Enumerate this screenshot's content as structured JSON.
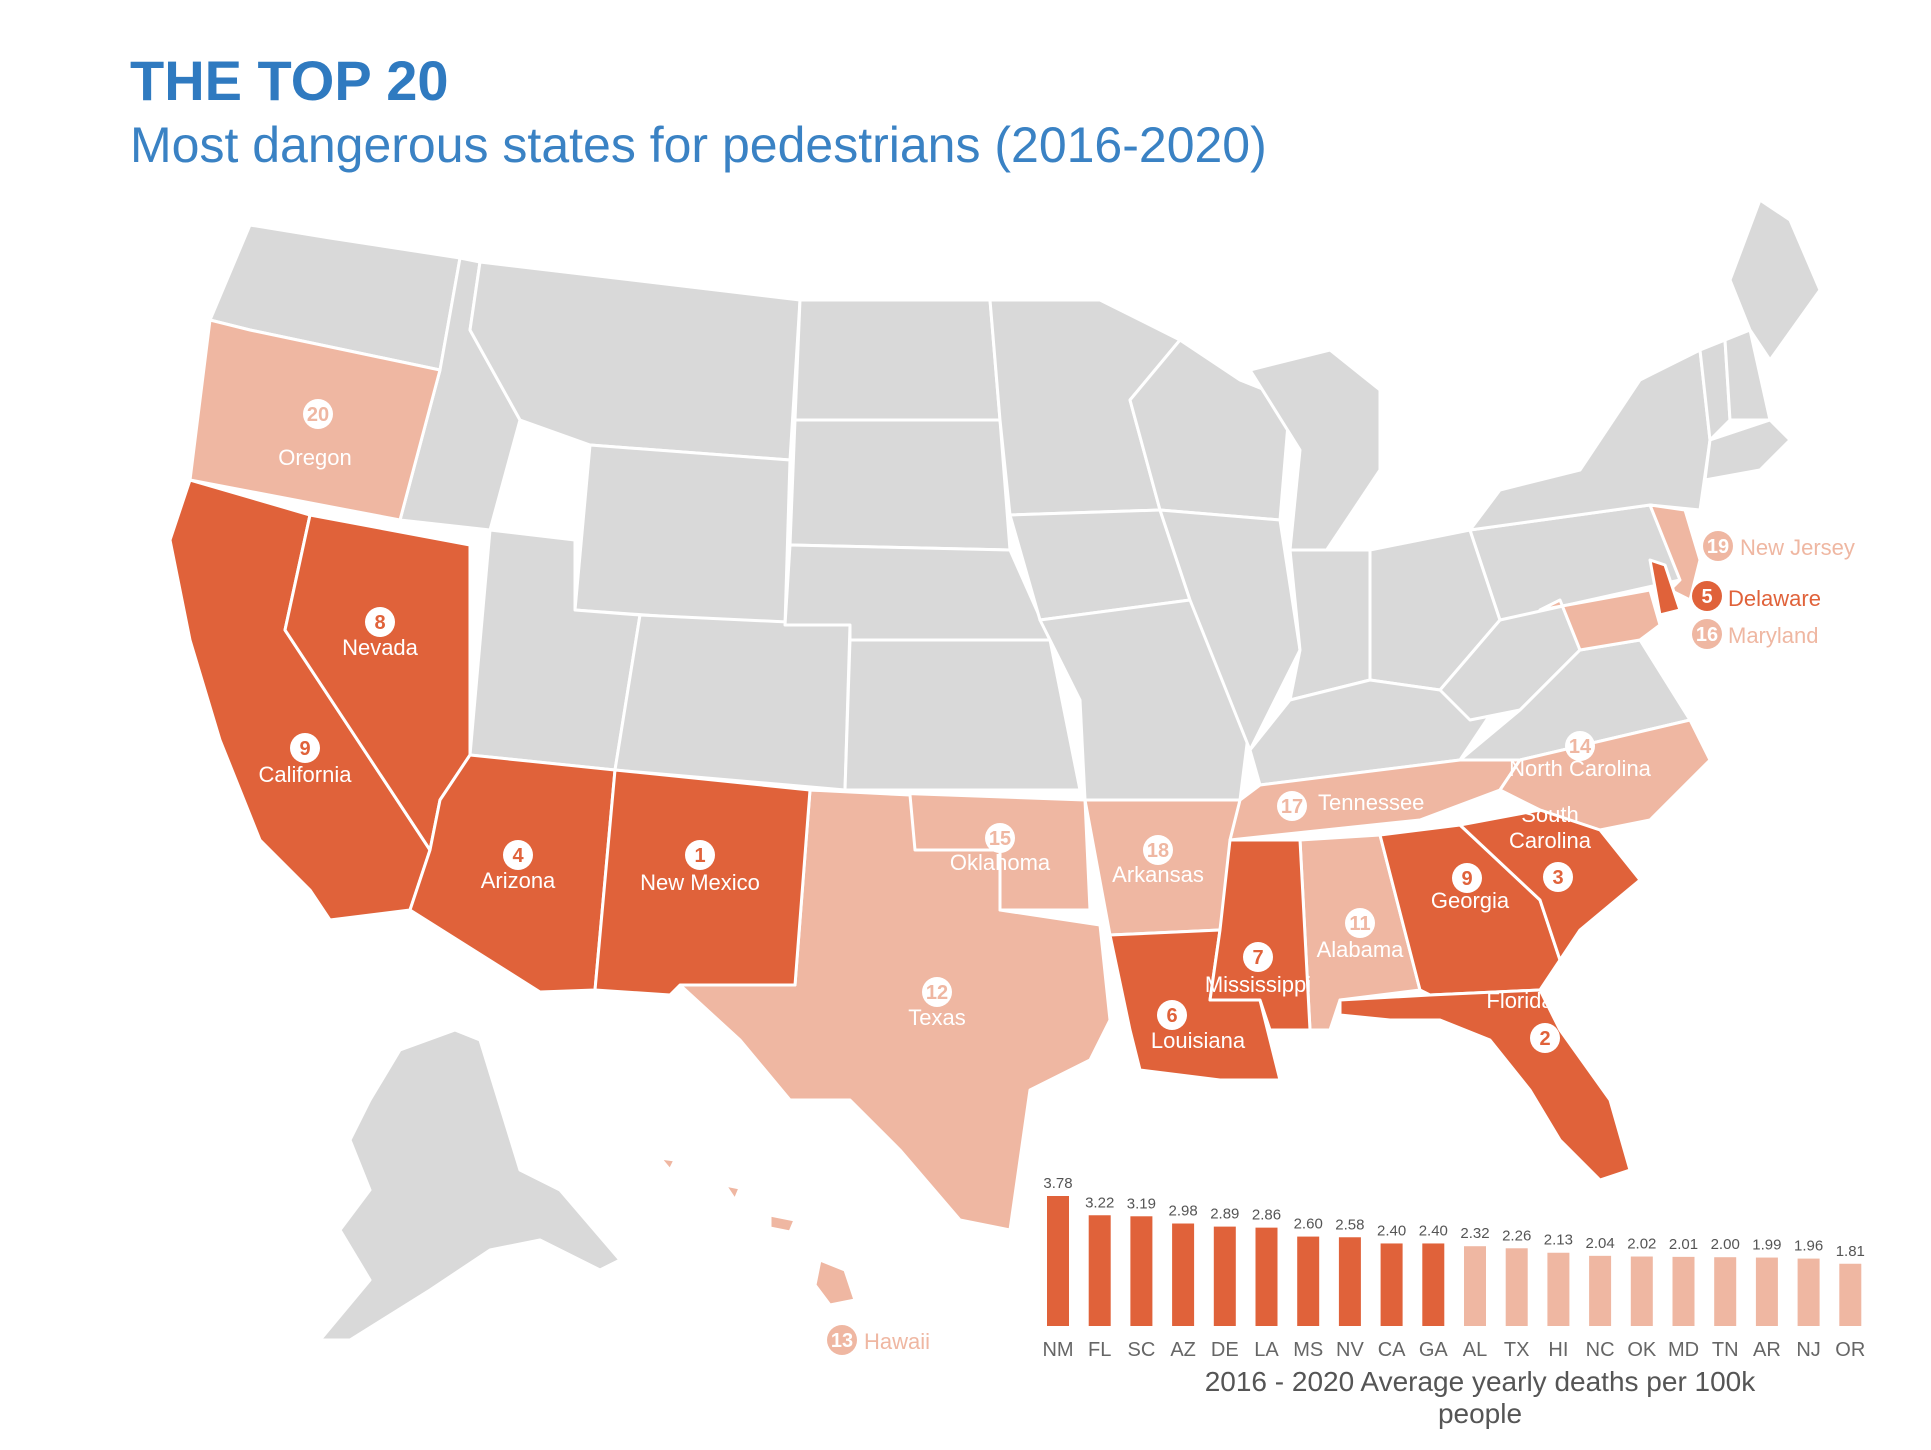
{
  "header": {
    "title": "THE TOP 20",
    "subtitle": "Most dangerous states for pedestrians (2016-2020)"
  },
  "colors": {
    "top10": "#e0623a",
    "top20": "#efb7a2",
    "other": "#d9d9d9",
    "title": "#2f7ac0"
  },
  "map_labels": [
    {
      "rank": "1",
      "name": "New Mexico",
      "tier": "top10"
    },
    {
      "rank": "2",
      "name": "Florida",
      "tier": "top10"
    },
    {
      "rank": "3",
      "name": "South Carolina",
      "tier": "top10"
    },
    {
      "rank": "4",
      "name": "Arizona",
      "tier": "top10"
    },
    {
      "rank": "5",
      "name": "Delaware",
      "tier": "top10"
    },
    {
      "rank": "6",
      "name": "Louisiana",
      "tier": "top10"
    },
    {
      "rank": "7",
      "name": "Mississippi",
      "tier": "top10"
    },
    {
      "rank": "8",
      "name": "Nevada",
      "tier": "top10"
    },
    {
      "rank": "9",
      "name": "California",
      "tier": "top10"
    },
    {
      "rank": "9",
      "name": "Georgia",
      "tier": "top10"
    },
    {
      "rank": "11",
      "name": "Alabama",
      "tier": "top20"
    },
    {
      "rank": "12",
      "name": "Texas",
      "tier": "top20"
    },
    {
      "rank": "13",
      "name": "Hawaii",
      "tier": "top20"
    },
    {
      "rank": "14",
      "name": "North Carolina",
      "tier": "top20"
    },
    {
      "rank": "15",
      "name": "Oklahoma",
      "tier": "top20"
    },
    {
      "rank": "16",
      "name": "Maryland",
      "tier": "top20"
    },
    {
      "rank": "17",
      "name": "Tennessee",
      "tier": "top20"
    },
    {
      "rank": "18",
      "name": "Arkansas",
      "tier": "top20"
    },
    {
      "rank": "19",
      "name": "New Jersey",
      "tier": "top20"
    },
    {
      "rank": "20",
      "name": "Oregon",
      "tier": "top20"
    }
  ],
  "chart_data": {
    "type": "bar",
    "categories": [
      "NM",
      "FL",
      "SC",
      "AZ",
      "DE",
      "LA",
      "MS",
      "NV",
      "CA",
      "GA",
      "AL",
      "TX",
      "HI",
      "NC",
      "OK",
      "MD",
      "TN",
      "AR",
      "NJ",
      "OR"
    ],
    "values": [
      3.78,
      3.22,
      3.19,
      2.98,
      2.89,
      2.86,
      2.6,
      2.58,
      2.4,
      2.4,
      2.32,
      2.26,
      2.13,
      2.04,
      2.02,
      2.01,
      2.0,
      1.99,
      1.96,
      1.81
    ],
    "value_labels": [
      "3.78",
      "3.22",
      "3.19",
      "2.98",
      "2.89",
      "2.86",
      "2.60",
      "2.58",
      "2.40",
      "2.40",
      "2.32",
      "2.26",
      "2.13",
      "2.04",
      "2.02",
      "2.01",
      "2.00",
      "1.99",
      "1.96",
      "1.81"
    ],
    "xlabel": "2016 - 2020 Average yearly deaths per 100k people",
    "ylim": [
      0,
      3.78
    ],
    "top_group_count": 10
  }
}
